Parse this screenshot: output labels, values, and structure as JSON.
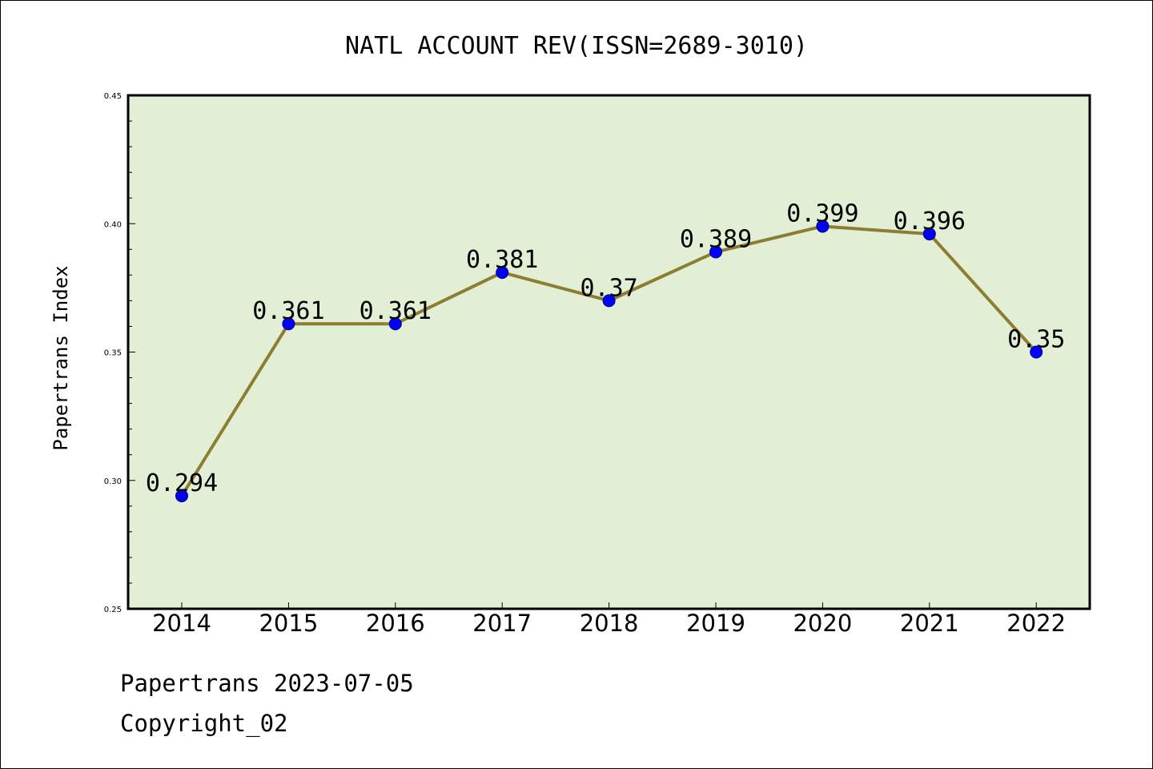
{
  "chart_data": {
    "type": "line",
    "title": "NATL ACCOUNT REV(ISSN=2689-3010)",
    "ylabel": "Papertrans Index",
    "xlabel": "",
    "x": [
      "2014",
      "2015",
      "2016",
      "2017",
      "2018",
      "2019",
      "2020",
      "2021",
      "2022"
    ],
    "values": [
      0.294,
      0.361,
      0.361,
      0.381,
      0.37,
      0.389,
      0.399,
      0.396,
      0.35
    ],
    "data_labels": [
      "0.294",
      "0.361",
      "0.361",
      "0.381",
      "0.37",
      "0.389",
      "0.399",
      "0.396",
      "0.35"
    ],
    "ylim": [
      0.25,
      0.45
    ],
    "yticks": [
      "0.25",
      "0.30",
      "0.35",
      "0.40",
      "0.45"
    ],
    "grid": false,
    "colors": {
      "plot_bg": "#e2efd4",
      "line": "#8c7d32",
      "marker": "#0000ff"
    }
  },
  "footer": {
    "date_line": "Papertrans 2023-07-05",
    "copyright": "Copyright_02"
  }
}
